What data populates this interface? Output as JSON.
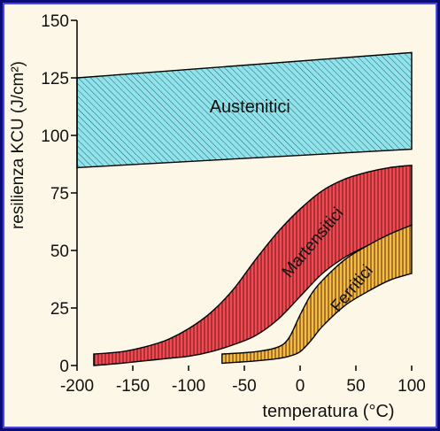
{
  "chart_data": {
    "type": "area",
    "title": "",
    "xlabel": "temperatura (°C)",
    "ylabel": "resilienza KCU (J/cm²)",
    "xlim": [
      -200,
      100
    ],
    "ylim": [
      0,
      150
    ],
    "x_ticks": [
      "-200",
      "-150",
      "-100",
      "-50",
      "0",
      "50",
      "100"
    ],
    "y_ticks": [
      "0",
      "25",
      "50",
      "75",
      "100",
      "125",
      "150"
    ],
    "grid": false,
    "series": [
      {
        "name": "Austenitici",
        "color": "#8fe3ea",
        "x": [
          -200,
          100
        ],
        "upper": [
          125,
          136
        ],
        "lower": [
          86,
          94
        ]
      },
      {
        "name": "Martensitici",
        "color": "#f04a52",
        "x": [
          -185,
          -160,
          -140,
          -120,
          -100,
          -80,
          -60,
          -40,
          -20,
          0,
          20,
          40,
          60,
          80,
          100
        ],
        "upper": [
          5,
          6,
          8,
          11,
          16,
          23,
          33,
          46,
          58,
          68,
          76,
          81,
          84,
          86,
          87
        ],
        "lower": [
          0,
          1,
          2,
          3,
          4,
          6,
          9,
          13,
          20,
          30,
          40,
          47,
          52,
          57,
          61
        ]
      },
      {
        "name": "Ferritici",
        "color": "#f0c040",
        "x": [
          -70,
          -40,
          -20,
          -10,
          0,
          10,
          20,
          40,
          60,
          80,
          100
        ],
        "upper": [
          5,
          6,
          8,
          12,
          22,
          31,
          37,
          46,
          52,
          57,
          61
        ],
        "lower": [
          1,
          2,
          3,
          4,
          6,
          11,
          17,
          26,
          32,
          37,
          40
        ]
      }
    ]
  }
}
